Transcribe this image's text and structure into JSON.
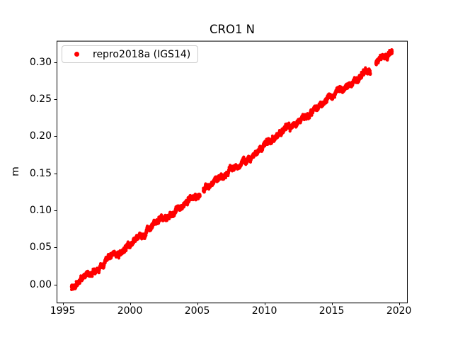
{
  "figure": {
    "background_color": "#ffffff",
    "axis_color": "#000000",
    "text_color": "#000000"
  },
  "chart_data": {
    "type": "scatter",
    "title": "CRO1 N",
    "xlabel": "",
    "ylabel": "m",
    "grid": false,
    "xlim": [
      1994.55,
      2020.65
    ],
    "ylim": [
      -0.0245,
      0.3287
    ],
    "xticks": [
      {
        "value": 1995,
        "label": "1995"
      },
      {
        "value": 2000,
        "label": "2000"
      },
      {
        "value": 2005,
        "label": "2005"
      },
      {
        "value": 2010,
        "label": "2010"
      },
      {
        "value": 2015,
        "label": "2015"
      },
      {
        "value": 2020,
        "label": "2020"
      }
    ],
    "yticks": [
      {
        "value": 0.0,
        "label": "0.00"
      },
      {
        "value": 0.05,
        "label": "0.05"
      },
      {
        "value": 0.1,
        "label": "0.10"
      },
      {
        "value": 0.15,
        "label": "0.15"
      },
      {
        "value": 0.2,
        "label": "0.20"
      },
      {
        "value": 0.25,
        "label": "0.25"
      },
      {
        "value": 0.3,
        "label": "0.30"
      }
    ],
    "legend": {
      "position": "upper-left",
      "border_color": "#cccccc",
      "entries": [
        {
          "label": "repro2018a (IGS14)",
          "marker": "dot",
          "color": "#ff0000"
        }
      ]
    },
    "series": [
      {
        "name": "repro2018a (IGS14)",
        "color": "#ff0000",
        "marker": "dot",
        "marker_radius_px": 2.1,
        "x_start": 1995.65,
        "x_end": 2019.5,
        "y_start": -0.004,
        "y_end": 0.313,
        "slope_m_per_year": 0.0133,
        "points_per_year": 330,
        "noise_std_m": 0.0012,
        "annual_amplitude_m": 0.0012,
        "meander_std_m": 0.0023,
        "dropout_fraction": 0.06,
        "gaps": [
          [
            2005.22,
            2005.45
          ],
          [
            2017.88,
            2018.28
          ]
        ],
        "seed": 42
      }
    ]
  }
}
